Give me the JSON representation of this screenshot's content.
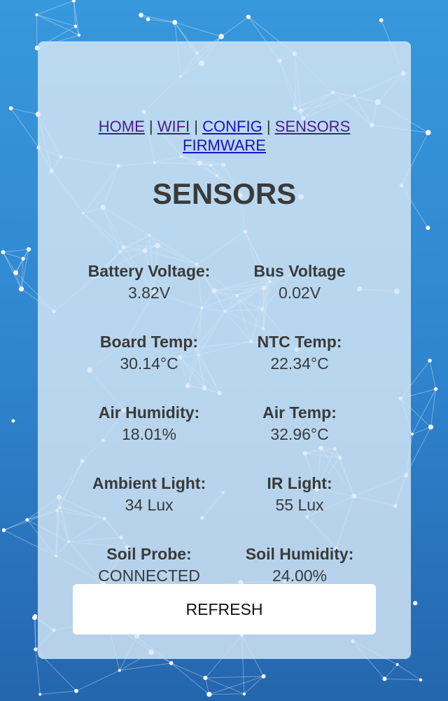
{
  "nav": {
    "links": [
      {
        "label": "HOME"
      },
      {
        "label": "WIFI"
      },
      {
        "label": "CONFIG"
      },
      {
        "label": "SENSORS"
      },
      {
        "label": "FIRMWARE"
      }
    ],
    "separator": "|"
  },
  "page_title": "SENSORS",
  "sensors": [
    {
      "label": "Battery Voltage:",
      "value": "3.82V"
    },
    {
      "label": "Bus Voltage",
      "value": "0.02V"
    },
    {
      "label": "Board Temp:",
      "value": "30.14°C"
    },
    {
      "label": "NTC Temp:",
      "value": "22.34°C"
    },
    {
      "label": "Air Humidity:",
      "value": "18.01%"
    },
    {
      "label": "Air Temp:",
      "value": "32.96°C"
    },
    {
      "label": "Ambient Light:",
      "value": "34 Lux"
    },
    {
      "label": "IR Light:",
      "value": "55 Lux"
    },
    {
      "label": "Soil Probe:",
      "value": "CONNECTED"
    },
    {
      "label": "Soil Humidity:",
      "value": "24.00%"
    }
  ],
  "refresh_label": "REFRESH",
  "colors": {
    "bg_top": "#3898dc",
    "bg_bottom": "#2466ae",
    "link": "#1a12c8",
    "visited_link": "#4b1d8a"
  }
}
